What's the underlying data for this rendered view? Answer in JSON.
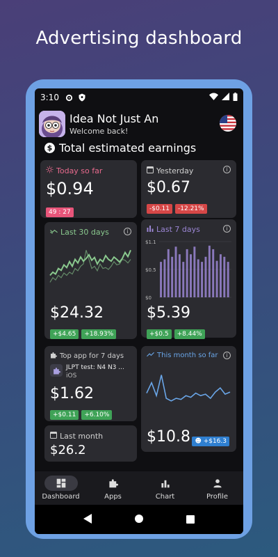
{
  "headline": "Advertising dashboard",
  "status": {
    "time": "3:10"
  },
  "app": {
    "name": "Idea Not Just An",
    "welcome": "Welcome back!"
  },
  "section_title": "Total estimated earnings",
  "cards": {
    "today": {
      "title": "Today so far",
      "value": "$0.94",
      "timer": "49 : 27",
      "accent": "#e86a8d"
    },
    "yesterday": {
      "title": "Yesterday",
      "value": "$0.67",
      "delta": "-$0.11",
      "delta_pct": "-12.21%"
    },
    "last30": {
      "title": "Last 30 days",
      "value": "$24.32",
      "delta": "+$4.65",
      "delta_pct": "+18.93%",
      "accent": "#8ac98e"
    },
    "last7": {
      "title": "Last 7 days",
      "value": "$5.39",
      "delta": "+$0.5",
      "delta_pct": "+8.44%",
      "accent": "#9b86d4",
      "y_ticks": [
        "$1.1",
        "$0.5",
        "$0"
      ]
    },
    "topapp": {
      "title": "Top app for 7 days",
      "app_name": "JLPT test: N4 N3 ...",
      "platform": "iOS",
      "value": "$1.62",
      "delta": "+$0.11",
      "delta_pct": "+6.10%"
    },
    "month": {
      "title": "This month so far",
      "value": "$10.8",
      "delta": "+$16.3",
      "accent": "#6aa6e8"
    },
    "lastmonth": {
      "title": "Last month",
      "value": "$26.2"
    }
  },
  "nav": [
    {
      "label": "Dashboard",
      "icon": "dashboard-icon",
      "active": true
    },
    {
      "label": "Apps",
      "icon": "puzzle-icon",
      "active": false
    },
    {
      "label": "Chart",
      "icon": "bar-chart-icon",
      "active": false
    },
    {
      "label": "Profile",
      "icon": "person-icon",
      "active": false
    }
  ],
  "chart_data": [
    {
      "type": "line",
      "title": "Last 30 days",
      "series": [
        {
          "values": [
            0.55,
            0.62,
            0.58,
            0.7,
            0.66,
            0.78,
            0.72,
            0.85,
            0.75,
            0.9,
            0.82,
            0.95,
            0.86,
            0.92,
            1.0,
            0.88,
            0.94,
            0.8,
            0.9,
            0.85,
            0.98,
            0.9,
            0.86,
            0.95,
            0.9,
            0.84,
            0.92,
            1.05,
            0.96,
            1.1
          ]
        },
        {
          "values": [
            0.4,
            0.5,
            0.45,
            0.55,
            0.5,
            0.6,
            0.55,
            0.62,
            0.58,
            0.7,
            0.65,
            0.75,
            0.8,
            1.1,
            0.9,
            0.7,
            0.75,
            0.65,
            0.8,
            0.7,
            0.72,
            0.68,
            0.75,
            0.85,
            0.78,
            0.8,
            0.9,
            0.88,
            0.82,
            0.9
          ]
        }
      ]
    },
    {
      "type": "bar",
      "title": "Last 7 days",
      "ylim": [
        0,
        1.1
      ],
      "values": [
        0.7,
        0.75,
        0.95,
        0.8,
        1.0,
        0.85,
        0.7,
        0.95,
        0.85,
        1.0,
        0.75,
        0.7,
        0.8,
        1.02,
        0.95,
        0.72,
        0.85,
        0.8,
        0.7
      ]
    },
    {
      "type": "line",
      "title": "This month so far",
      "series": [
        {
          "values": [
            0.6,
            0.8,
            0.55,
            0.95,
            0.5,
            0.45,
            0.5,
            0.48,
            0.55,
            0.52,
            0.6,
            0.55,
            0.58,
            0.5,
            0.62,
            0.7,
            0.58,
            0.62
          ]
        }
      ]
    }
  ]
}
